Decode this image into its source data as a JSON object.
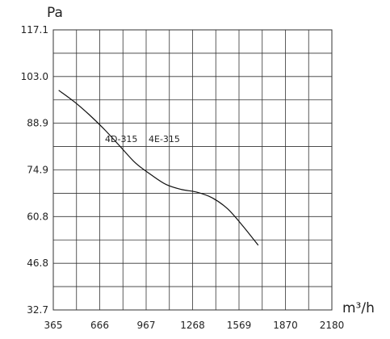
{
  "chart_data": {
    "type": "line",
    "title": "",
    "xlabel": "m³/h",
    "ylabel": "Pa",
    "xlim": [
      365,
      2180
    ],
    "ylim": [
      32.7,
      117.1
    ],
    "x_ticks": [
      "365",
      "666",
      "967",
      "1268",
      "1569",
      "1870",
      "2180"
    ],
    "y_ticks": [
      "117.1",
      "103.0",
      "88.9",
      "74.9",
      "60.8",
      "46.8",
      "32.7"
    ],
    "grid": true,
    "annotations": [
      "4D-315",
      "4E-315"
    ],
    "series": [
      {
        "name": "",
        "x": [
          400,
          500,
          600,
          700,
          800,
          900,
          1000,
          1100,
          1200,
          1300,
          1400,
          1500,
          1600,
          1700
        ],
        "y": [
          98.9,
          95.5,
          91.5,
          87.0,
          82.0,
          77.0,
          73.5,
          70.5,
          69.0,
          68.2,
          66.5,
          63.2,
          58.0,
          52.2
        ]
      }
    ]
  }
}
